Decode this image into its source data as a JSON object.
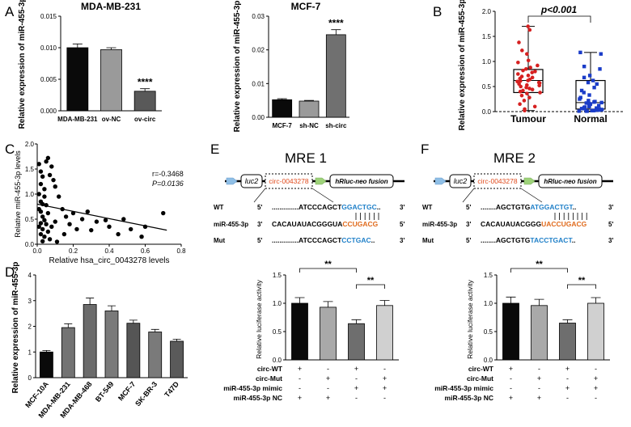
{
  "panel_labels": [
    "A",
    "B",
    "C",
    "D",
    "E",
    "F"
  ],
  "chart_data": [
    {
      "id": "A1",
      "type": "bar",
      "title": "MDA-MB-231",
      "ylabel": "Relative expression of miR-455-3p",
      "categories": [
        "MDA-MB-231",
        "ov-NC",
        "ov-circ"
      ],
      "values": [
        0.01,
        0.0097,
        0.0031
      ],
      "errors": [
        0.0006,
        0.0003,
        0.0004
      ],
      "colors": [
        "#0a0a0a",
        "#9a9a9a",
        "#595959"
      ],
      "annotations": [
        "",
        "",
        "****"
      ],
      "ylim": [
        0,
        0.015
      ],
      "yticks": [
        0,
        0.005,
        0.01,
        0.015
      ],
      "ytick_labels": [
        "0.000",
        "0.005",
        "0.010",
        "0.015"
      ]
    },
    {
      "id": "A2",
      "type": "bar",
      "title": "MCF-7",
      "ylabel": "Relative expression of miR-455-3p",
      "categories": [
        "MCF-7",
        "sh-NC",
        "sh-circ"
      ],
      "values": [
        0.0052,
        0.0048,
        0.0245
      ],
      "errors": [
        0.0003,
        0.0002,
        0.0015
      ],
      "colors": [
        "#0a0a0a",
        "#9a9a9a",
        "#707070"
      ],
      "annotations": [
        "",
        "",
        "****"
      ],
      "ylim": [
        0,
        0.03
      ],
      "yticks": [
        0,
        0.01,
        0.02,
        0.03
      ],
      "ytick_labels": [
        "0.00",
        "0.01",
        "0.02",
        "0.03"
      ]
    },
    {
      "id": "B",
      "type": "box",
      "ylabel": "Relative expression of miR-455-3p",
      "categories": [
        "Tumour",
        "Normal"
      ],
      "annotation": "p<0.001",
      "ylim": [
        0,
        2.0
      ],
      "yticks": [
        0,
        0.5,
        1.0,
        1.5,
        2.0
      ],
      "ytick_labels": [
        "0.0",
        "0.5",
        "1.0",
        "1.5",
        "2.0"
      ],
      "boxes": [
        {
          "min": 0.02,
          "q1": 0.38,
          "median": 0.62,
          "q3": 0.84,
          "max": 1.7,
          "color": "#d62020",
          "points": [
            1.7,
            1.63,
            1.38,
            1.22,
            1.15,
            1.02,
            0.98,
            0.92,
            0.88,
            0.85,
            0.82,
            0.8,
            0.78,
            0.75,
            0.72,
            0.7,
            0.68,
            0.66,
            0.64,
            0.62,
            0.61,
            0.6,
            0.58,
            0.57,
            0.55,
            0.53,
            0.52,
            0.5,
            0.48,
            0.46,
            0.44,
            0.42,
            0.4,
            0.38,
            0.36,
            0.32,
            0.28,
            0.22,
            0.15,
            0.1,
            0.05,
            0.02
          ]
        },
        {
          "min": 0.01,
          "q1": 0.05,
          "median": 0.18,
          "q3": 0.62,
          "max": 1.18,
          "color": "#1a3cc8",
          "points": [
            1.18,
            1.15,
            0.9,
            0.85,
            0.72,
            0.68,
            0.62,
            0.58,
            0.55,
            0.48,
            0.42,
            0.38,
            0.33,
            0.28,
            0.25,
            0.22,
            0.2,
            0.19,
            0.18,
            0.17,
            0.16,
            0.15,
            0.14,
            0.12,
            0.11,
            0.1,
            0.09,
            0.08,
            0.07,
            0.06,
            0.06,
            0.05,
            0.05,
            0.04,
            0.04,
            0.03,
            0.03,
            0.02,
            0.02,
            0.01,
            0.01,
            0.01
          ]
        }
      ]
    },
    {
      "id": "C",
      "type": "scatter",
      "xlabel": "Relative hsa_circ_0043278 levels",
      "ylabel": "Relative miR-455-3p levels",
      "annotations": [
        "r=-0.3468",
        "P=0.0136"
      ],
      "xlim": [
        0,
        0.8
      ],
      "ylim": [
        0,
        2.0
      ],
      "xticks": [
        0,
        0.2,
        0.4,
        0.6,
        0.8
      ],
      "xtick_labels": [
        "0.0",
        "0.2",
        "0.4",
        "0.6",
        "0.8"
      ],
      "yticks": [
        0,
        0.5,
        1.0,
        1.5,
        2.0
      ],
      "ytick_labels": [
        "0.0",
        "0.5",
        "1.0",
        "1.5",
        "2.0"
      ],
      "fit_line": {
        "x": [
          0,
          0.72
        ],
        "y": [
          0.8,
          0.28
        ]
      },
      "points": [
        [
          0.01,
          1.6
        ],
        [
          0.02,
          1.45
        ],
        [
          0.03,
          1.35
        ],
        [
          0.02,
          1.2
        ],
        [
          0.04,
          1.1
        ],
        [
          0.01,
          1.0
        ],
        [
          0.05,
          1.65
        ],
        [
          0.06,
          1.72
        ],
        [
          0.08,
          1.55
        ],
        [
          0.07,
          1.38
        ],
        [
          0.09,
          1.28
        ],
        [
          0.1,
          1.15
        ],
        [
          0.04,
          0.95
        ],
        [
          0.02,
          0.85
        ],
        [
          0.03,
          0.8
        ],
        [
          0.05,
          0.78
        ],
        [
          0.01,
          0.7
        ],
        [
          0.02,
          0.65
        ],
        [
          0.06,
          0.62
        ],
        [
          0.03,
          0.55
        ],
        [
          0.04,
          0.48
        ],
        [
          0.02,
          0.42
        ],
        [
          0.05,
          0.4
        ],
        [
          0.01,
          0.35
        ],
        [
          0.03,
          0.3
        ],
        [
          0.06,
          0.25
        ],
        [
          0.02,
          0.2
        ],
        [
          0.04,
          0.15
        ],
        [
          0.07,
          0.1
        ],
        [
          0.03,
          0.06
        ],
        [
          0.12,
          0.95
        ],
        [
          0.14,
          0.7
        ],
        [
          0.16,
          0.55
        ],
        [
          0.18,
          0.4
        ],
        [
          0.2,
          0.62
        ],
        [
          0.22,
          0.3
        ],
        [
          0.25,
          0.5
        ],
        [
          0.15,
          0.2
        ],
        [
          0.28,
          0.65
        ],
        [
          0.3,
          0.28
        ],
        [
          0.33,
          0.45
        ],
        [
          0.38,
          0.48
        ],
        [
          0.4,
          0.35
        ],
        [
          0.45,
          0.2
        ],
        [
          0.48,
          0.5
        ],
        [
          0.52,
          0.3
        ],
        [
          0.58,
          0.15
        ],
        [
          0.6,
          0.35
        ],
        [
          0.7,
          0.62
        ],
        [
          0.1,
          0.45
        ],
        [
          0.08,
          0.35
        ],
        [
          0.11,
          0.05
        ]
      ]
    },
    {
      "id": "D",
      "type": "bar",
      "ylabel": "Relative expression of miR-455-3p",
      "categories": [
        "MCF-10A",
        "MDA-MB-231",
        "MDA-MB-468",
        "BT-549",
        "MCF-7",
        "SK-BR-3",
        "T47D"
      ],
      "values": [
        1.0,
        1.95,
        2.85,
        2.6,
        2.12,
        1.78,
        1.42
      ],
      "errors": [
        0.06,
        0.15,
        0.25,
        0.2,
        0.12,
        0.1,
        0.08
      ],
      "colors": [
        "#0a0a0a",
        "#737373",
        "#6b6b6b",
        "#7a7a7a",
        "#555555",
        "#7a7a7a",
        "#5a5a5a"
      ],
      "ylim": [
        0,
        4
      ],
      "yticks": [
        0,
        1,
        2,
        3,
        4
      ],
      "ytick_labels": [
        "0",
        "1",
        "2",
        "3",
        "4"
      ]
    },
    {
      "id": "E",
      "type": "bar",
      "ylabel": "Relative luciferase activity",
      "values": [
        1.0,
        0.93,
        0.64,
        0.96
      ],
      "errors": [
        0.1,
        0.1,
        0.07,
        0.09
      ],
      "colors": [
        "#0a0a0a",
        "#a9a9a9",
        "#6e6e6e",
        "#d0d0d0"
      ],
      "ylim": [
        0,
        1.5
      ],
      "yticks": [
        0,
        0.5,
        1.0,
        1.5
      ],
      "ytick_labels": [
        "0.0",
        "0.5",
        "1.0",
        "1.5"
      ],
      "sig_brackets": [
        {
          "from": 0,
          "to": 2,
          "label": "**"
        },
        {
          "from": 2,
          "to": 3,
          "label": "**"
        }
      ],
      "condition_rows": [
        {
          "label": "circ-WT",
          "signs": [
            "+",
            "-",
            "+",
            "-"
          ]
        },
        {
          "label": "circ-Mut",
          "signs": [
            "-",
            "+",
            "-",
            "+"
          ]
        },
        {
          "label": "miR-455-3p mimic",
          "signs": [
            "-",
            "-",
            "+",
            "+"
          ]
        },
        {
          "label": "miR-455-3p NC",
          "signs": [
            "+",
            "+",
            "-",
            "-"
          ]
        }
      ]
    },
    {
      "id": "F",
      "type": "bar",
      "ylabel": "Relative luciferase activity",
      "values": [
        1.0,
        0.96,
        0.65,
        1.0
      ],
      "errors": [
        0.11,
        0.11,
        0.06,
        0.1
      ],
      "colors": [
        "#0a0a0a",
        "#a9a9a9",
        "#6e6e6e",
        "#d0d0d0"
      ],
      "ylim": [
        0,
        1.5
      ],
      "yticks": [
        0,
        0.5,
        1.0,
        1.5
      ],
      "ytick_labels": [
        "0.0",
        "0.5",
        "1.0",
        "1.5"
      ],
      "sig_brackets": [
        {
          "from": 0,
          "to": 2,
          "label": "**"
        },
        {
          "from": 2,
          "to": 3,
          "label": "**"
        }
      ],
      "condition_rows": [
        {
          "label": "circ-WT",
          "signs": [
            "+",
            "-",
            "+",
            "-"
          ]
        },
        {
          "label": "circ-Mut",
          "signs": [
            "-",
            "+",
            "-",
            "+"
          ]
        },
        {
          "label": "miR-455-3p mimic",
          "signs": [
            "-",
            "-",
            "+",
            "+"
          ]
        },
        {
          "label": "miR-455-3p NC",
          "signs": [
            "+",
            "+",
            "-",
            "-"
          ]
        }
      ]
    }
  ],
  "constructs": [
    {
      "id": "E",
      "title": "MRE 1",
      "gene1": "luc2",
      "circ": "circ-0043278",
      "gene2": "hRluc-neo fusion",
      "rows": [
        {
          "name": "WT",
          "p5": "5'",
          "pre": "..............ATCCCAGCT",
          "hl": "GGACTGC",
          "post": "..",
          "p3": "3'",
          "hlcolor": "#1e7fc8"
        },
        {
          "name": "miR-455-3p",
          "p5": "3'",
          "pre": "CACAUAUACGGGUA",
          "hl": "CCUGACG",
          "post": "",
          "p3": "5'",
          "hlcolor": "#e06a1c"
        },
        {
          "name": "Mut",
          "p5": "5'",
          "pre": "..............ATCCCAGCT",
          "hl": "CCTGAC",
          "post": "..",
          "p3": "3'",
          "hlcolor": "#1e7fc8"
        }
      ]
    },
    {
      "id": "F",
      "title": "MRE 2",
      "gene1": "luc2",
      "circ": "circ-0043278",
      "gene2": "hRluc-neo fusion",
      "rows": [
        {
          "name": "WT",
          "p5": "5'",
          "pre": "........AGCTGTG",
          "hl": "ATGGACTGT",
          "post": "..",
          "p3": "3'",
          "hlcolor": "#1e7fc8"
        },
        {
          "name": "miR-455-3p",
          "p5": "3'",
          "pre": "CACAUAUACGGG",
          "hl": "UACCUGACG",
          "post": "",
          "p3": "5'",
          "hlcolor": "#e06a1c"
        },
        {
          "name": "Mut",
          "p5": "5'",
          "pre": "........AGCTGTG",
          "hl": "TACCTGACT",
          "post": "..",
          "p3": "3'",
          "hlcolor": "#1e7fc8"
        }
      ]
    }
  ]
}
